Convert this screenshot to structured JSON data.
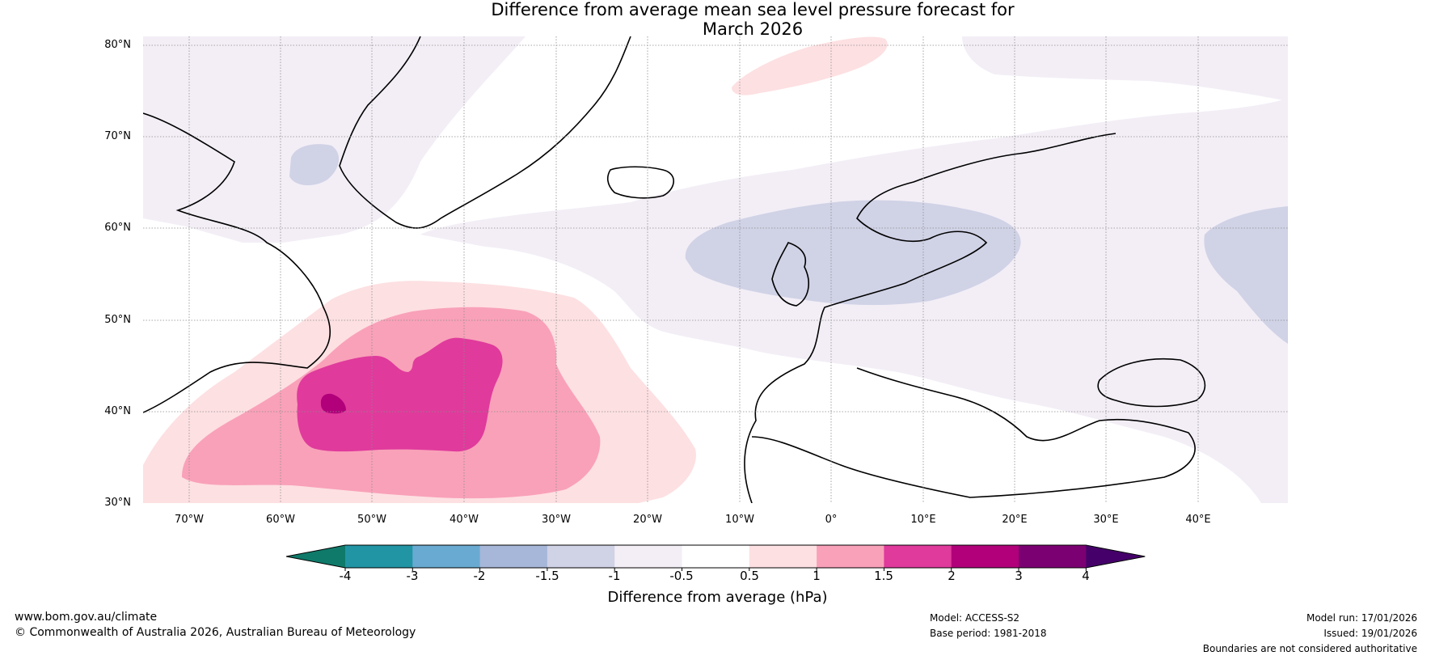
{
  "title": {
    "line1": "Difference from average mean sea level pressure forecast for",
    "line2": "March 2026"
  },
  "axes": {
    "lat_labels": [
      "80°N",
      "70°N",
      "60°N",
      "50°N",
      "40°N",
      "30°N"
    ],
    "lon_labels": [
      "70°W",
      "60°W",
      "50°W",
      "40°W",
      "30°W",
      "20°W",
      "10°W",
      "0°",
      "10°E",
      "20°E",
      "30°E",
      "40°E"
    ]
  },
  "colorbar": {
    "ticks": [
      "-4",
      "-3",
      "-2",
      "-1.5",
      "-1",
      "-0.5",
      "0.5",
      "1",
      "1.5",
      "2",
      "3",
      "4"
    ],
    "colors": [
      "#0f7a6a",
      "#2195a4",
      "#69aad2",
      "#a7b7d9",
      "#d0d2e6",
      "#f3eef6",
      "#ffffff",
      "#fde0e2",
      "#f9a1b9",
      "#e03a9c",
      "#b1007a",
      "#7b0072",
      "#45006a"
    ],
    "label": "Difference from average (hPa)"
  },
  "footer": {
    "website": "www.bom.gov.au/climate",
    "copyright": "© Commonwealth of Australia 2026, Australian Bureau of Meteorology",
    "model": "Model: ACCESS-S2",
    "base_period": "Base period: 1981-2018",
    "model_run": "Model run: 17/01/2026",
    "issued": "Issued: 19/01/2026",
    "disclaimer": "Boundaries are not considered authoritative"
  }
}
